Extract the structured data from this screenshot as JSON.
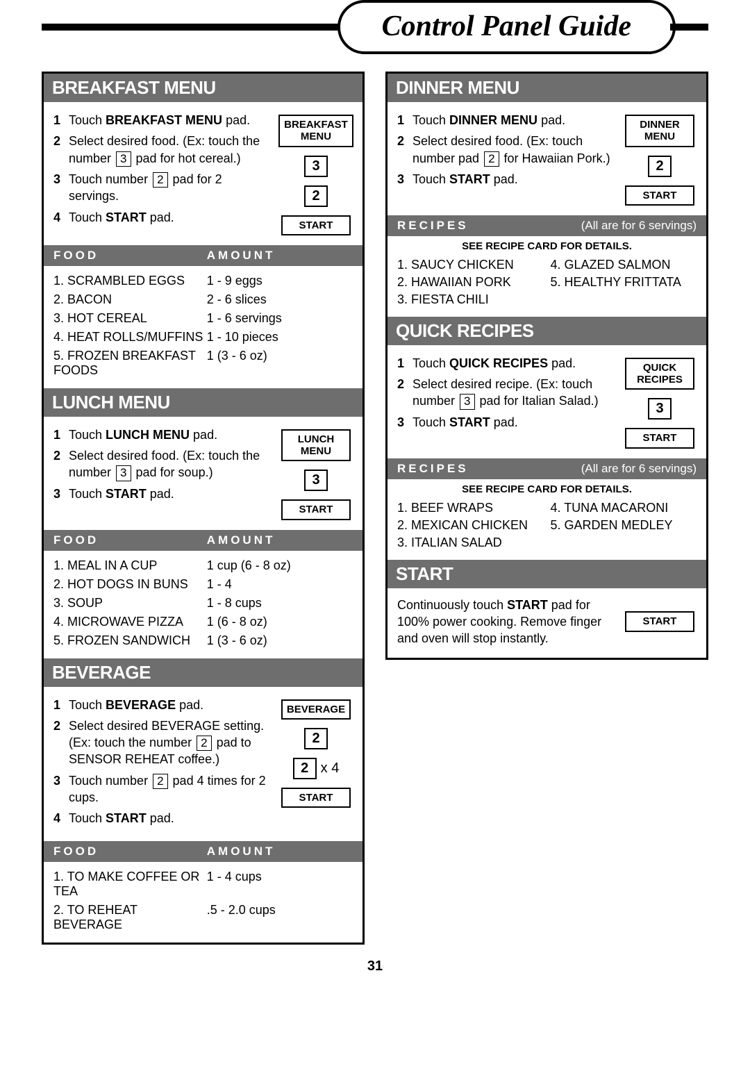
{
  "title": "Control Panel Guide",
  "page_number": "31",
  "colors": {
    "header_bg": "#6e6e6e",
    "header_fg": "#ffffff",
    "border": "#000000"
  },
  "breakfast": {
    "header": "BREAKFAST MENU",
    "steps": [
      {
        "n": "1",
        "html": "Touch <b>BREAKFAST MENU</b> pad."
      },
      {
        "n": "2",
        "html": "Select desired food. (Ex: touch the number <span class='inline-key'>3</span> pad for hot cereal.)"
      },
      {
        "n": "3",
        "html": "Touch number <span class='inline-key'>2</span> pad for 2 servings."
      },
      {
        "n": "4",
        "html": "Touch <b>START</b> pad."
      }
    ],
    "buttons": [
      {
        "type": "label",
        "text": "BREAKFAST\nMENU"
      },
      {
        "type": "num",
        "text": "3"
      },
      {
        "type": "num",
        "text": "2"
      },
      {
        "type": "label",
        "text": "START"
      }
    ],
    "sub_left": "FOOD",
    "sub_right": "AMOUNT",
    "rows": [
      {
        "food": "1. SCRAMBLED EGGS",
        "amt": "1 - 9 eggs"
      },
      {
        "food": "2. BACON",
        "amt": "2 - 6 slices"
      },
      {
        "food": "3. HOT CEREAL",
        "amt": "1 - 6 servings"
      },
      {
        "food": "4. HEAT ROLLS/MUFFINS",
        "amt": "1 - 10 pieces"
      },
      {
        "food": "5. FROZEN BREAKFAST FOODS",
        "amt": "1 (3 - 6 oz)"
      }
    ]
  },
  "lunch": {
    "header": "LUNCH MENU",
    "steps": [
      {
        "n": "1",
        "html": "Touch <b>LUNCH MENU</b> pad."
      },
      {
        "n": "2",
        "html": "Select desired food. (Ex: touch the number <span class='inline-key'>3</span> pad for soup.)"
      },
      {
        "n": "3",
        "html": "Touch <b>START</b> pad."
      }
    ],
    "buttons": [
      {
        "type": "label",
        "text": "LUNCH\nMENU"
      },
      {
        "type": "num",
        "text": "3"
      },
      {
        "type": "label",
        "text": "START"
      }
    ],
    "sub_left": "FOOD",
    "sub_right": "AMOUNT",
    "rows": [
      {
        "food": "1. MEAL IN A CUP",
        "amt": "1 cup (6 - 8 oz)"
      },
      {
        "food": "2. HOT DOGS IN BUNS",
        "amt": "1 - 4"
      },
      {
        "food": "3. SOUP",
        "amt": "1 - 8 cups"
      },
      {
        "food": "4. MICROWAVE PIZZA",
        "amt": "1 (6 - 8 oz)"
      },
      {
        "food": "5. FROZEN SANDWICH",
        "amt": "1 (3 - 6 oz)"
      }
    ]
  },
  "beverage": {
    "header": "BEVERAGE",
    "steps": [
      {
        "n": "1",
        "html": "Touch <b>BEVERAGE</b> pad."
      },
      {
        "n": "2",
        "html": "Select desired BEVERAGE setting. (Ex: touch the number <span class='inline-key'>2</span> pad to SENSOR REHEAT coffee.)"
      },
      {
        "n": "3",
        "html": "Touch number <span class='inline-key'>2</span> pad 4 times for 2 cups."
      },
      {
        "n": "4",
        "html": "Touch <b>START</b> pad."
      }
    ],
    "buttons": [
      {
        "type": "label",
        "text": "BEVERAGE"
      },
      {
        "type": "num",
        "text": "2"
      },
      {
        "type": "numx",
        "text": "2",
        "suffix": " x 4"
      },
      {
        "type": "label",
        "text": "START"
      }
    ],
    "sub_left": "FOOD",
    "sub_right": "AMOUNT",
    "rows": [
      {
        "food": "1. TO MAKE COFFEE OR TEA",
        "amt": "1 - 4 cups"
      },
      {
        "food": "2. TO REHEAT BEVERAGE",
        "amt": ".5 - 2.0 cups"
      }
    ]
  },
  "dinner": {
    "header": "DINNER MENU",
    "steps": [
      {
        "n": "1",
        "html": "Touch <b>DINNER MENU</b> pad."
      },
      {
        "n": "2",
        "html": "Select desired food. (Ex: touch number pad <span class='inline-key'>2</span> for Hawaiian Pork.)"
      },
      {
        "n": "3",
        "html": "Touch <b>START</b> pad."
      }
    ],
    "buttons": [
      {
        "type": "label",
        "text": "DINNER\nMENU"
      },
      {
        "type": "num",
        "text": "2"
      },
      {
        "type": "label",
        "text": "START"
      }
    ],
    "recipes_label": "RECIPES",
    "servings_note": "(All are for 6 servings)",
    "card_note": "SEE RECIPE CARD FOR DETAILS.",
    "recipes_left": [
      "1. SAUCY CHICKEN",
      "2. HAWAIIAN PORK",
      "3. FIESTA CHILI"
    ],
    "recipes_right": [
      "4. GLAZED SALMON",
      "5. HEALTHY FRITTATA"
    ]
  },
  "quick": {
    "header": "QUICK RECIPES",
    "steps": [
      {
        "n": "1",
        "html": "Touch <b>QUICK RECIPES</b> pad."
      },
      {
        "n": "2",
        "html": "Select desired recipe. (Ex: touch number <span class='inline-key'>3</span> pad for Italian Salad.)"
      },
      {
        "n": "3",
        "html": "Touch <b>START</b> pad."
      }
    ],
    "buttons": [
      {
        "type": "label",
        "text": "QUICK\nRECIPES"
      },
      {
        "type": "num",
        "text": "3"
      },
      {
        "type": "label",
        "text": "START"
      }
    ],
    "recipes_label": "RECIPES",
    "servings_note": "(All are for 6 servings)",
    "card_note": "SEE RECIPE CARD FOR DETAILS.",
    "recipes_left": [
      "1. BEEF WRAPS",
      "2. MEXICAN CHICKEN",
      "3. ITALIAN SALAD"
    ],
    "recipes_right": [
      "4. TUNA MACARONI",
      "5. GARDEN MEDLEY"
    ]
  },
  "start": {
    "header": "START",
    "text_html": "Continuously touch <b>START</b> pad for 100% power cooking. Remove finger and oven will stop instantly.",
    "button": "START"
  }
}
